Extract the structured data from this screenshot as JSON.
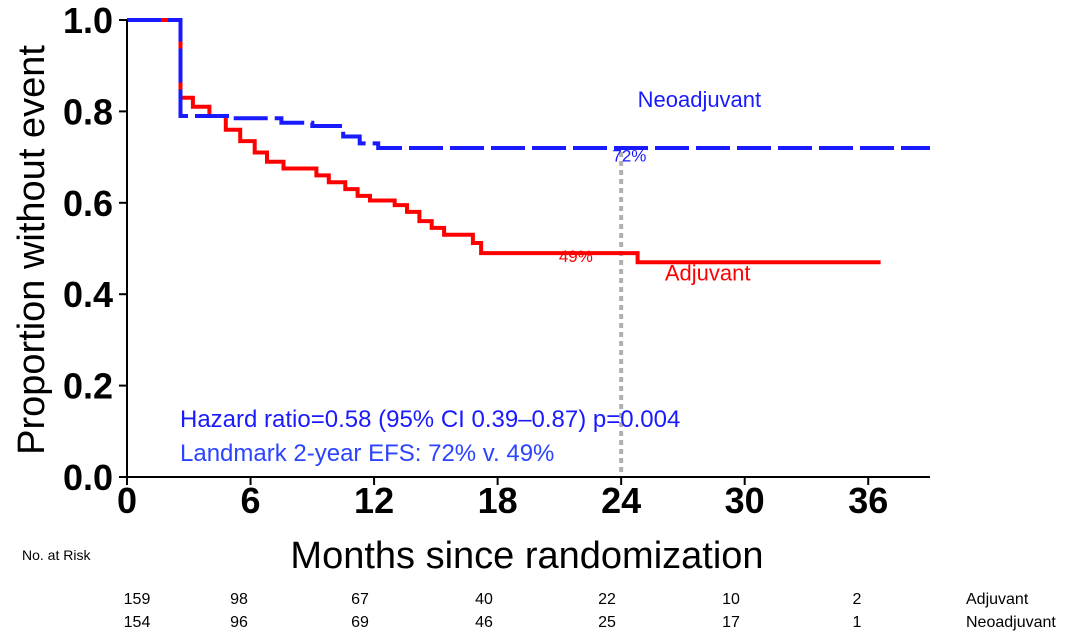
{
  "chart_data": {
    "type": "line",
    "title": "",
    "xlabel": "Months since randomization",
    "ylabel": "Proportion without event",
    "xlim": [
      0,
      39
    ],
    "ylim": [
      0,
      1
    ],
    "x_ticks": [
      0,
      6,
      12,
      18,
      24,
      30,
      36
    ],
    "x_tick_labels": [
      "0",
      "6",
      "12",
      "18",
      "24",
      "30",
      "36"
    ],
    "y_ticks": [
      0,
      0.2,
      0.4,
      0.6,
      0.8,
      1.0
    ],
    "y_tick_labels": [
      "0.0",
      "0.2",
      "0.4",
      "0.6",
      "0.8",
      "1.0"
    ],
    "series": [
      {
        "name": "Neoadjuvant",
        "color": "#1a1aff",
        "style": "dashed",
        "points": [
          [
            0,
            1.0
          ],
          [
            2.6,
            1.0
          ],
          [
            2.6,
            0.79
          ],
          [
            5,
            0.79
          ],
          [
            5,
            0.785
          ],
          [
            7.5,
            0.785
          ],
          [
            7.5,
            0.775
          ],
          [
            9,
            0.775
          ],
          [
            9,
            0.768
          ],
          [
            10.5,
            0.768
          ],
          [
            10.5,
            0.745
          ],
          [
            11.3,
            0.745
          ],
          [
            11.3,
            0.73
          ],
          [
            12.2,
            0.73
          ],
          [
            12.2,
            0.72
          ],
          [
            39,
            0.72
          ]
        ]
      },
      {
        "name": "Adjuvant",
        "color": "#ff0000",
        "style": "solid",
        "points": [
          [
            0,
            1.0
          ],
          [
            2.6,
            1.0
          ],
          [
            2.6,
            0.83
          ],
          [
            3.2,
            0.83
          ],
          [
            3.2,
            0.81
          ],
          [
            4,
            0.81
          ],
          [
            4,
            0.79
          ],
          [
            4.8,
            0.79
          ],
          [
            4.8,
            0.76
          ],
          [
            5.5,
            0.76
          ],
          [
            5.5,
            0.735
          ],
          [
            6.2,
            0.735
          ],
          [
            6.2,
            0.71
          ],
          [
            6.8,
            0.71
          ],
          [
            6.8,
            0.69
          ],
          [
            7.6,
            0.69
          ],
          [
            7.6,
            0.675
          ],
          [
            9.2,
            0.675
          ],
          [
            9.2,
            0.66
          ],
          [
            9.8,
            0.66
          ],
          [
            9.8,
            0.645
          ],
          [
            10.6,
            0.645
          ],
          [
            10.6,
            0.63
          ],
          [
            11.2,
            0.63
          ],
          [
            11.2,
            0.615
          ],
          [
            11.8,
            0.615
          ],
          [
            11.8,
            0.605
          ],
          [
            13,
            0.605
          ],
          [
            13,
            0.595
          ],
          [
            13.6,
            0.595
          ],
          [
            13.6,
            0.58
          ],
          [
            14.2,
            0.58
          ],
          [
            14.2,
            0.56
          ],
          [
            14.8,
            0.56
          ],
          [
            14.8,
            0.545
          ],
          [
            15.4,
            0.545
          ],
          [
            15.4,
            0.53
          ],
          [
            16.8,
            0.53
          ],
          [
            16.8,
            0.512
          ],
          [
            17.2,
            0.512
          ],
          [
            17.2,
            0.49
          ],
          [
            24.8,
            0.49
          ],
          [
            24.8,
            0.47
          ],
          [
            36.6,
            0.47
          ]
        ]
      }
    ],
    "annotations": [
      {
        "text": "Neoadjuvant",
        "x": 27.8,
        "y": 0.81,
        "color": "#1a1aff"
      },
      {
        "text": "Adjuvant",
        "x": 28.2,
        "y": 0.43,
        "color": "#ff0000"
      },
      {
        "text": "72%",
        "x": 24.4,
        "y": 0.69,
        "color": "#1a1aff"
      },
      {
        "text": "49%",
        "x": 21.8,
        "y": 0.47,
        "color": "#ff0000"
      }
    ],
    "landmark_x": 24,
    "hazard_text": "Hazard ratio=0.58 (95% CI 0.39–0.87) p=0.004",
    "landmark_text": "Landmark 2-year EFS: 72% v. 49%",
    "risk_table": {
      "title": "No. at Risk",
      "rows": [
        {
          "label": "Adjuvant",
          "values": [
            "159",
            "98",
            "67",
            "40",
            "22",
            "10",
            "2"
          ]
        },
        {
          "label": "Neoadjuvant",
          "values": [
            "154",
            "96",
            "69",
            "46",
            "25",
            "17",
            "1"
          ]
        }
      ]
    }
  }
}
